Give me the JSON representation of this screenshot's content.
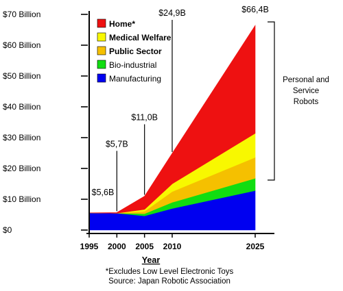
{
  "chart_data": {
    "type": "area",
    "stacked": true,
    "x": [
      1995,
      2000,
      2005,
      2010,
      2025
    ],
    "xticks": [
      "1995",
      "2000",
      "2005",
      "2010",
      "2025"
    ],
    "xlabel": "Year",
    "ylabel": "",
    "ylim": [
      0,
      70
    ],
    "yticks": [
      "$0",
      "$10 Billion",
      "$20 Billion",
      "$30 Billion",
      "$40 Billion",
      "$50 Billion",
      "$60 Billion",
      "$70 Billion"
    ],
    "series": [
      {
        "name": "Manufacturing",
        "color": "#0000f0",
        "values": [
          5.6,
          5.5,
          4.6,
          7.0,
          12.8
        ]
      },
      {
        "name": "Bio-industrial",
        "color": "#11dd11",
        "values": [
          0.0,
          0.0,
          0.7,
          2.0,
          4.0
        ]
      },
      {
        "name": "Public Sector",
        "color": "#f5c000",
        "values": [
          0.0,
          0.0,
          0.8,
          3.5,
          6.8
        ]
      },
      {
        "name": "Medical Welfare",
        "color": "#f8f800",
        "values": [
          0.0,
          0.0,
          0.6,
          2.5,
          7.8
        ]
      },
      {
        "name": "Home*",
        "color": "#ee1111",
        "values": [
          0.0,
          0.2,
          4.3,
          9.9,
          35.0
        ]
      }
    ],
    "legend": [
      "Home*",
      "Medical Welfare",
      "Public Sector",
      "Bio-industrial",
      "Manufacturing"
    ],
    "legend_bold": [
      true,
      true,
      true,
      false,
      false
    ],
    "annotations": [
      {
        "label": "$5,6B",
        "x": 1995
      },
      {
        "label": "$5,7B",
        "x": 2000
      },
      {
        "label": "$11,0B",
        "x": 2005
      },
      {
        "label": "$24,9B",
        "x": 2010
      },
      {
        "label": "$66,4B",
        "x": 2025
      }
    ],
    "bracket_label": [
      "Personal and",
      "Service",
      "Robots"
    ],
    "notes": [
      "*Excludes Low Level Electronic Toys",
      "Source: Japan Robotic Association"
    ]
  }
}
